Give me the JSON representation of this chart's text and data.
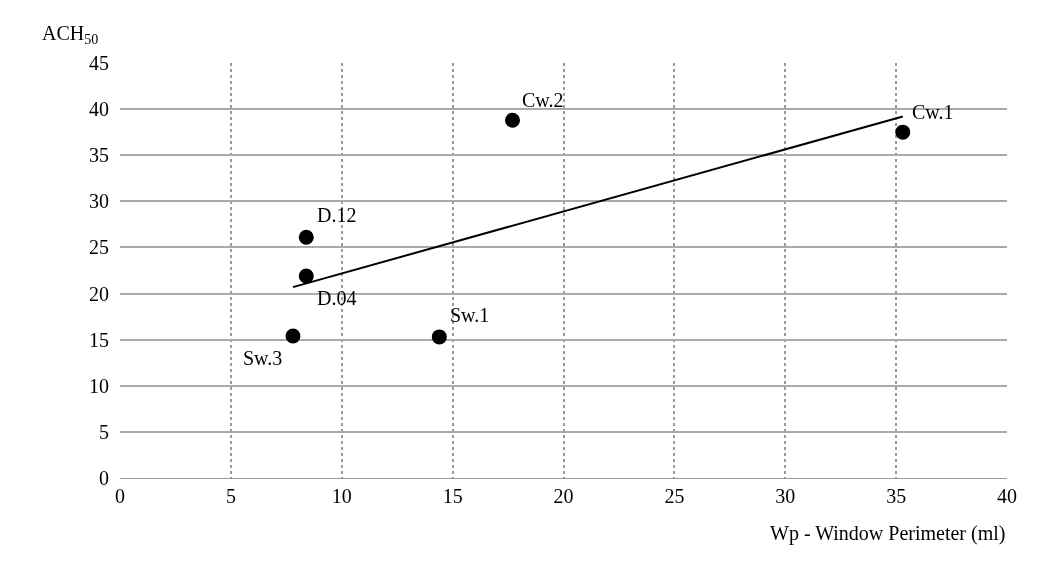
{
  "chart_data": {
    "type": "scatter",
    "xlabel": "Wp - Window Perimeter (ml)",
    "ylabel": "ACH$_{50}$",
    "x": [
      7.8,
      8.4,
      8.4,
      14.4,
      17.7,
      35.3
    ],
    "series": [
      {
        "color": "#000000",
        "values": [
          15.4,
          21.9,
          26.1,
          15.3,
          38.8,
          37.5
        ]
      },
      {
        "type": "line",
        "color": "#000000",
        "x": [
          7.8,
          35.3
        ],
        "values": [
          20.7,
          39.2
        ],
        "marker": "none"
      }
    ],
    "annotations": [
      {
        "text": "Sw.3",
        "x": 7.8,
        "y": 15.4
      },
      {
        "text": "D.04",
        "x": 8.4,
        "y": 21.9
      },
      {
        "text": "D.12",
        "x": 8.4,
        "y": 26.1
      },
      {
        "text": "Sw.1",
        "x": 14.4,
        "y": 15.3
      },
      {
        "text": "Cw.2",
        "x": 17.7,
        "y": 38.8
      },
      {
        "text": "Cw.1",
        "x": 35.3,
        "y": 37.5
      }
    ],
    "xlim": [
      0,
      40
    ],
    "xticks": [
      0,
      5,
      10,
      15,
      20,
      25,
      30,
      35,
      40
    ],
    "ylim": [
      0,
      45
    ],
    "yticks": [
      0,
      5,
      10,
      15,
      20,
      25,
      30,
      35,
      40,
      45
    ],
    "grid": true,
    "marker": "circle"
  }
}
